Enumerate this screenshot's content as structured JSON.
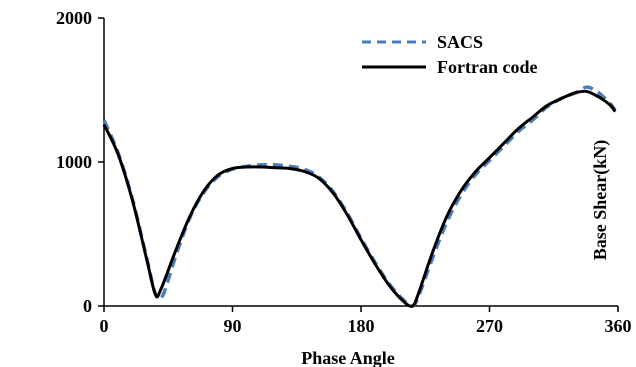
{
  "chart_data": {
    "type": "line",
    "title": "",
    "xlabel": "Phase Angle",
    "ylabel": "Base Shear(kN)",
    "xlim": [
      0,
      360
    ],
    "ylim": [
      0,
      2000
    ],
    "x_ticks": [
      0,
      90,
      180,
      270,
      360
    ],
    "y_ticks": [
      0,
      1000,
      2000
    ],
    "x_tick_labels": [
      "0",
      "90",
      "180",
      "270",
      "360"
    ],
    "y_tick_labels": [
      "0",
      "1000",
      "2000"
    ],
    "grid": false,
    "legend": "top-right",
    "series": [
      {
        "name": "SACS",
        "color": "#4a7ebb",
        "style": "dashed",
        "x": [
          0,
          10,
          20,
          30,
          36,
          41,
          50,
          60,
          70,
          80,
          90,
          100,
          110,
          120,
          130,
          140,
          150,
          160,
          170,
          180,
          190,
          200,
          210,
          216,
          220,
          230,
          240,
          250,
          260,
          270,
          280,
          290,
          300,
          310,
          320,
          330,
          338,
          345,
          350,
          355,
          358
        ],
        "y": [
          1290,
          1060,
          740,
          330,
          85,
          70,
          340,
          610,
          790,
          900,
          950,
          970,
          980,
          980,
          970,
          950,
          900,
          800,
          650,
          470,
          300,
          150,
          40,
          0,
          60,
          330,
          580,
          770,
          910,
          1010,
          1110,
          1210,
          1290,
          1380,
          1440,
          1480,
          1520,
          1490,
          1450,
          1400,
          1360
        ]
      },
      {
        "name": "Fortran code",
        "color": "#000000",
        "style": "solid",
        "x": [
          0,
          10,
          20,
          30,
          36,
          40,
          50,
          60,
          70,
          80,
          90,
          100,
          110,
          120,
          130,
          140,
          150,
          160,
          170,
          180,
          190,
          200,
          210,
          216,
          220,
          230,
          240,
          250,
          260,
          270,
          280,
          290,
          300,
          310,
          320,
          330,
          338,
          345,
          350,
          355,
          358
        ],
        "y": [
          1260,
          1050,
          730,
          320,
          80,
          120,
          380,
          620,
          800,
          910,
          955,
          965,
          965,
          960,
          955,
          935,
          890,
          790,
          640,
          460,
          290,
          140,
          30,
          0,
          80,
          370,
          620,
          800,
          930,
          1030,
          1130,
          1230,
          1310,
          1390,
          1440,
          1480,
          1490,
          1460,
          1430,
          1390,
          1350
        ]
      }
    ]
  }
}
